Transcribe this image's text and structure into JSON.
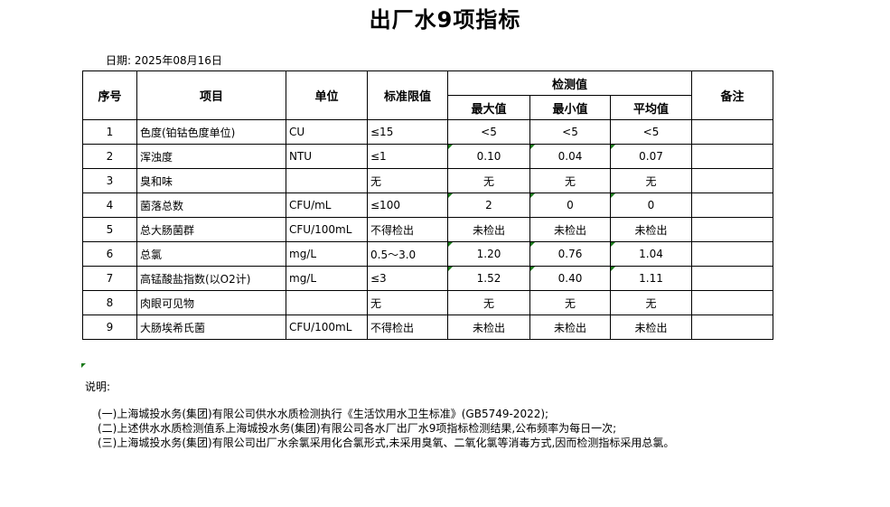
{
  "title": "出厂水9项指标",
  "date": "日期: 2025年08月16日",
  "headers": {
    "seq": "序号",
    "item": "项目",
    "unit": "单位",
    "limit": "标准限值",
    "detect": "检测值",
    "max": "最大值",
    "min": "最小值",
    "avg": "平均值",
    "remark": "备注"
  },
  "rows": [
    {
      "seq": "1",
      "item": "色度(铂钴色度单位)",
      "unit": "CU",
      "limit": "≤15",
      "max": "<5",
      "min": "<5",
      "avg": "<5",
      "remark": "",
      "flag": false
    },
    {
      "seq": "2",
      "item": "浑浊度",
      "unit": "NTU",
      "limit": "≤1",
      "max": "0.10",
      "min": "0.04",
      "avg": "0.07",
      "remark": "",
      "flag": true
    },
    {
      "seq": "3",
      "item": "臭和味",
      "unit": "",
      "limit": "无",
      "max": "无",
      "min": "无",
      "avg": "无",
      "remark": "",
      "flag": false
    },
    {
      "seq": "4",
      "item": "菌落总数",
      "unit": "CFU/mL",
      "limit": "≤100",
      "max": "2",
      "min": "0",
      "avg": "0",
      "remark": "",
      "flag": true
    },
    {
      "seq": "5",
      "item": "总大肠菌群",
      "unit": "CFU/100mL",
      "limit": "不得检出",
      "max": "未检出",
      "min": "未检出",
      "avg": "未检出",
      "remark": "",
      "flag": false
    },
    {
      "seq": "6",
      "item": "总氯",
      "unit": "mg/L",
      "limit": "0.5～3.0",
      "max": "1.20",
      "min": "0.76",
      "avg": "1.04",
      "remark": "",
      "flag": true
    },
    {
      "seq": "7",
      "item": "高锰酸盐指数(以O2计)",
      "unit": "mg/L",
      "limit": "≤3",
      "max": "1.52",
      "min": "0.40",
      "avg": "1.11",
      "remark": "",
      "flag": true
    },
    {
      "seq": "8",
      "item": "肉眼可见物",
      "unit": "",
      "limit": "无",
      "max": "无",
      "min": "无",
      "avg": "无",
      "remark": "",
      "flag": false
    },
    {
      "seq": "9",
      "item": "大肠埃希氏菌",
      "unit": "CFU/100mL",
      "limit": "不得检出",
      "max": "未检出",
      "min": "未检出",
      "avg": "未检出",
      "remark": "",
      "flag": false
    }
  ],
  "notes": {
    "heading": "说明:",
    "lines": [
      "(一)上海城投水务(集团)有限公司供水水质检测执行《生活饮用水卫生标准》(GB5749-2022);",
      "(二)上述供水水质检测值系上海城投水务(集团)有限公司各水厂出厂水9项指标检测结果,公布频率为每日一次;",
      "(三)上海城投水务(集团)有限公司出厂水余氯采用化合氯形式,未采用臭氧、二氧化氯等消毒方式,因而检测指标采用总氯。"
    ]
  },
  "colors": {
    "flag_marker": "#1a7a1a"
  }
}
